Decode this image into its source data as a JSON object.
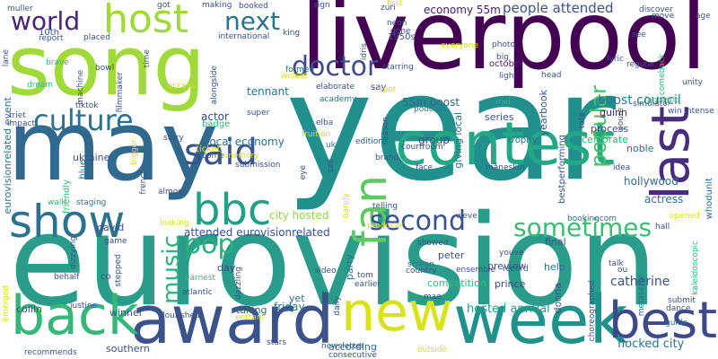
{
  "wordcloud": {
    "words": [
      {
        "text": "year",
        "color": "#21908c"
      },
      {
        "text": "eurovision",
        "color": "#2a9d8a"
      },
      {
        "text": "song",
        "color": "#a0da39"
      },
      {
        "text": "liverpool",
        "color": "#440154"
      },
      {
        "text": "may",
        "color": "#31688e"
      },
      {
        "text": "contest",
        "color": "#22a884"
      },
      {
        "text": "award",
        "color": "#3b528b"
      },
      {
        "text": "week",
        "color": "#20928c"
      },
      {
        "text": "new",
        "color": "#d8e219"
      },
      {
        "text": "back",
        "color": "#35b779"
      },
      {
        "text": "best",
        "color": "#3e4989"
      },
      {
        "text": "last",
        "color": "#472d7b"
      },
      {
        "text": "show",
        "color": "#2c728e"
      },
      {
        "text": "fan",
        "color": "#5ec962"
      },
      {
        "text": "bbc",
        "color": "#1fa187"
      },
      {
        "text": "host",
        "color": "#9fda3a"
      },
      {
        "text": "said",
        "color": "#3b528b"
      },
      {
        "text": "culture",
        "color": "#2c728e"
      },
      {
        "text": "world",
        "color": "#482475"
      },
      {
        "text": "second",
        "color": "#3b528b"
      },
      {
        "text": "sometimes",
        "color": "#3dbc74"
      },
      {
        "text": "doctor",
        "color": "#3e4a89"
      },
      {
        "text": "next",
        "color": "#2c728e"
      },
      {
        "text": "popular",
        "color": "#4ac16d"
      },
      {
        "text": "music",
        "color": "#2fb47c"
      },
      {
        "text": "pop",
        "color": "#29af7f"
      },
      {
        "text": "people attended",
        "color": "#3b528b"
      },
      {
        "text": "boost council",
        "color": "#2a788e"
      },
      {
        "text": "economy 55m",
        "color": "#481a6c"
      },
      {
        "text": "55m boost",
        "color": "#31688e"
      },
      {
        "text": "local economy",
        "color": "#2c728e"
      },
      {
        "text": "city hosted",
        "color": "#90d743"
      },
      {
        "text": "attended eurovisionrelated",
        "color": "#3b528b"
      },
      {
        "text": "eurovisionrelated event",
        "color": "#2c728e"
      },
      {
        "text": "hosted annual",
        "color": "#1f9e89"
      },
      {
        "text": "flocked city",
        "color": "#2c728e"
      },
      {
        "text": "catherine",
        "color": "#3b528b"
      },
      {
        "text": "hollywood",
        "color": "#31688e"
      },
      {
        "text": "actress",
        "color": "#2c728e"
      },
      {
        "text": "celebrate",
        "color": "#35b779"
      },
      {
        "text": "noble",
        "color": "#2c728e"
      },
      {
        "text": "process",
        "color": "#3b528b"
      },
      {
        "text": "guinn",
        "color": "#482878"
      },
      {
        "text": "tennant",
        "color": "#2c728e"
      },
      {
        "text": "actor",
        "color": "#3e4989"
      },
      {
        "text": "badge",
        "color": "#35b779"
      },
      {
        "text": "ukraine",
        "color": "#3b528b"
      },
      {
        "text": "group",
        "color": "#3b528b"
      },
      {
        "text": "giving local",
        "color": "#2c728e"
      },
      {
        "text": "series",
        "color": "#3b528b"
      },
      {
        "text": "october",
        "color": "#481a6c"
      },
      {
        "text": "1950s",
        "color": "#3b528b"
      },
      {
        "text": "say",
        "color": "#3e4989"
      },
      {
        "text": "friday",
        "color": "#2c728e"
      },
      {
        "text": "taking",
        "color": "#31688e"
      },
      {
        "text": "yet",
        "color": "#2a788e"
      },
      {
        "text": "winner",
        "color": "#3b528b"
      },
      {
        "text": "collin",
        "color": "#3b528b"
      },
      {
        "text": "day",
        "color": "#3e4989"
      },
      {
        "text": "david",
        "color": "#3b528b"
      },
      {
        "text": "final",
        "color": "#3b528b"
      },
      {
        "text": "help",
        "color": "#2c728e"
      },
      {
        "text": "preview",
        "color": "#3b528b"
      },
      {
        "text": "prince",
        "color": "#3e4989"
      },
      {
        "text": "competition",
        "color": "#35b779"
      },
      {
        "text": "peter",
        "color": "#3b528b"
      },
      {
        "text": "party",
        "color": "#2c728e"
      },
      {
        "text": "donna",
        "color": "#3b528b"
      },
      {
        "text": "according",
        "color": "#2c728e"
      },
      {
        "text": "southern",
        "color": "#3b528b"
      },
      {
        "text": "ticket",
        "color": "#d8e219"
      },
      {
        "text": "10th",
        "color": "#3b528b"
      },
      {
        "text": "got",
        "color": "#3b528b"
      },
      {
        "text": "making",
        "color": "#3b528b"
      },
      {
        "text": "muller",
        "color": "#3b528b"
      },
      {
        "text": "blue",
        "color": "#2c728e"
      },
      {
        "text": "friendly",
        "color": "#35b779"
      },
      {
        "text": "yearbook",
        "color": "#3b528b"
      },
      {
        "text": "bestperforming",
        "color": "#3b528b"
      },
      {
        "text": "trophy",
        "color": "#2c728e"
      },
      {
        "text": "showed",
        "color": "#3b528b"
      },
      {
        "text": "ensemble",
        "color": "#3b528b"
      },
      {
        "text": "choreographed",
        "color": "#3b528b"
      },
      {
        "text": "submit",
        "color": "#3b528b"
      },
      {
        "text": "dance",
        "color": "#3b528b"
      },
      {
        "text": "guide",
        "color": "#2c728e"
      },
      {
        "text": "talk",
        "color": "#3b528b"
      },
      {
        "text": "idea",
        "color": "#3b528b"
      },
      {
        "text": "hall",
        "color": "#3b528b"
      },
      {
        "text": "whodunit",
        "color": "#31688e"
      },
      {
        "text": "kaleidoscopic",
        "color": "#35b779"
      },
      {
        "text": "metaselfie",
        "color": "#2c728e"
      },
      {
        "text": "opened",
        "color": "#d8e219"
      },
      {
        "text": "bookingcom",
        "color": "#2c728e"
      },
      {
        "text": "weve",
        "color": "#3b528b"
      },
      {
        "text": "face",
        "color": "#3b528b"
      },
      {
        "text": "courtroom",
        "color": "#3b528b"
      },
      {
        "text": "telling",
        "color": "#3b528b"
      },
      {
        "text": "producer",
        "color": "#d8e219"
      },
      {
        "text": "brand",
        "color": "#3b528b"
      },
      {
        "text": "edition",
        "color": "#3b528b"
      },
      {
        "text": "måneskin",
        "color": "#3b528b"
      },
      {
        "text": "idris",
        "color": "#3b528b"
      },
      {
        "text": "elba",
        "color": "#3b528b"
      },
      {
        "text": "fruition",
        "color": "#d8e219"
      },
      {
        "text": "uk",
        "color": "#2c728e"
      },
      {
        "text": "eye",
        "color": "#3b528b"
      },
      {
        "text": "super",
        "color": "#3b528b"
      },
      {
        "text": "podcast",
        "color": "#2c728e"
      },
      {
        "text": "academy",
        "color": "#2c728e"
      },
      {
        "text": "elaborate",
        "color": "#3b528b"
      },
      {
        "text": "widest",
        "color": "#d8e219"
      },
      {
        "text": "formed",
        "color": "#2c728e"
      },
      {
        "text": "starring",
        "color": "#3b528b"
      },
      {
        "text": "neon",
        "color": "#3b528b"
      },
      {
        "text": "gone",
        "color": "#3b528b"
      },
      {
        "text": "zuri",
        "color": "#3b528b"
      },
      {
        "text": "first",
        "color": "#d8e219"
      },
      {
        "text": "king",
        "color": "#3b528b"
      },
      {
        "text": "international",
        "color": "#3b528b"
      },
      {
        "text": "booked",
        "color": "#3b528b"
      },
      {
        "text": "sign",
        "color": "#3b528b"
      },
      {
        "text": "report",
        "color": "#3b528b"
      },
      {
        "text": "placed",
        "color": "#3b528b"
      },
      {
        "text": "lane",
        "color": "#3b528b"
      },
      {
        "text": "brave",
        "color": "#35b779"
      },
      {
        "text": "dream",
        "color": "#35b779"
      },
      {
        "text": "machine",
        "color": "#3b528b"
      },
      {
        "text": "tiktok",
        "color": "#3b528b"
      },
      {
        "text": "filmmaker",
        "color": "#3b528b"
      },
      {
        "text": "bowl",
        "color": "#3b528b"
      },
      {
        "text": "time",
        "color": "#3b528b"
      },
      {
        "text": "access",
        "color": "#d8e219"
      },
      {
        "text": "alongside",
        "color": "#3b528b"
      },
      {
        "text": "triet",
        "color": "#3b528b"
      },
      {
        "text": "impact",
        "color": "#3b528b"
      },
      {
        "text": "story",
        "color": "#3b528b"
      },
      {
        "text": "bigger",
        "color": "#d8e219"
      },
      {
        "text": "french",
        "color": "#3b528b"
      },
      {
        "text": "come",
        "color": "#3b528b"
      },
      {
        "text": "memory",
        "color": "#d8e219"
      },
      {
        "text": "submission",
        "color": "#3b528b"
      },
      {
        "text": "almost",
        "color": "#3b528b"
      },
      {
        "text": "staging",
        "color": "#2c728e"
      },
      {
        "text": "walk",
        "color": "#35b779"
      },
      {
        "text": "looking",
        "color": "#d8e219"
      },
      {
        "text": "game",
        "color": "#3b528b"
      },
      {
        "text": "stepped",
        "color": "#3b528b"
      },
      {
        "text": "dizzying",
        "color": "#3b528b"
      },
      {
        "text": "behalf",
        "color": "#3b528b"
      },
      {
        "text": "earnest",
        "color": "#35b779"
      },
      {
        "text": "atlantic",
        "color": "#3b528b"
      },
      {
        "text": "dazzling",
        "color": "#3b528b"
      },
      {
        "text": "tom",
        "color": "#3b528b"
      },
      {
        "text": "earlier",
        "color": "#3b528b"
      },
      {
        "text": "screen",
        "color": "#2c728e"
      },
      {
        "text": "country",
        "color": "#3b528b"
      },
      {
        "text": "youve",
        "color": "#3b528b"
      },
      {
        "text": "record",
        "color": "#3b528b"
      },
      {
        "text": "mae",
        "color": "#3b528b"
      },
      {
        "text": "justine",
        "color": "#3b528b"
      },
      {
        "text": "flourished",
        "color": "#3b528b"
      },
      {
        "text": "entrant",
        "color": "#d8e219"
      },
      {
        "text": "stars",
        "color": "#3b528b"
      },
      {
        "text": "newsletter",
        "color": "#3b528b"
      },
      {
        "text": "consecutive",
        "color": "#3b528b"
      },
      {
        "text": "outside",
        "color": "#d8e219"
      },
      {
        "text": "recommends",
        "color": "#3b528b"
      },
      {
        "text": "emerged",
        "color": "#d8e219"
      },
      {
        "text": "daily",
        "color": "#3b528b"
      },
      {
        "text": "video",
        "color": "#3b528b"
      },
      {
        "text": "head",
        "color": "#3b528b"
      },
      {
        "text": "ligh",
        "color": "#3b528b"
      },
      {
        "text": "mel",
        "color": "#35b779"
      },
      {
        "text": "tate",
        "color": "#3b528b"
      },
      {
        "text": "regular",
        "color": "#3b528b"
      },
      {
        "text": "lyric",
        "color": "#3b528b"
      },
      {
        "text": "simulator",
        "color": "#2c728e"
      },
      {
        "text": "win intense",
        "color": "#3b528b"
      },
      {
        "text": "unity",
        "color": "#3b528b"
      },
      {
        "text": "fantastic",
        "color": "#35b779"
      },
      {
        "text": "age",
        "color": "#3b528b"
      },
      {
        "text": "move",
        "color": "#3b528b"
      },
      {
        "text": "discover",
        "color": "#3b528b"
      },
      {
        "text": "comeback",
        "color": "#35b779"
      },
      {
        "text": "photo",
        "color": "#3b528b"
      },
      {
        "text": "big",
        "color": "#3b528b"
      },
      {
        "text": "see",
        "color": "#3b528b"
      },
      {
        "text": "everyone",
        "color": "#d8e219"
      },
      {
        "text": "spot",
        "color": "#d8e219"
      },
      {
        "text": "youre",
        "color": "#3b528b"
      },
      {
        "text": "season",
        "color": "#3b528b"
      },
      {
        "text": "sell",
        "color": "#3b528b"
      },
      {
        "text": "barely",
        "color": "#d8e219"
      },
      {
        "text": "co",
        "color": "#3b528b"
      },
      {
        "text": "ou",
        "color": "#3b528b"
      }
    ]
  }
}
